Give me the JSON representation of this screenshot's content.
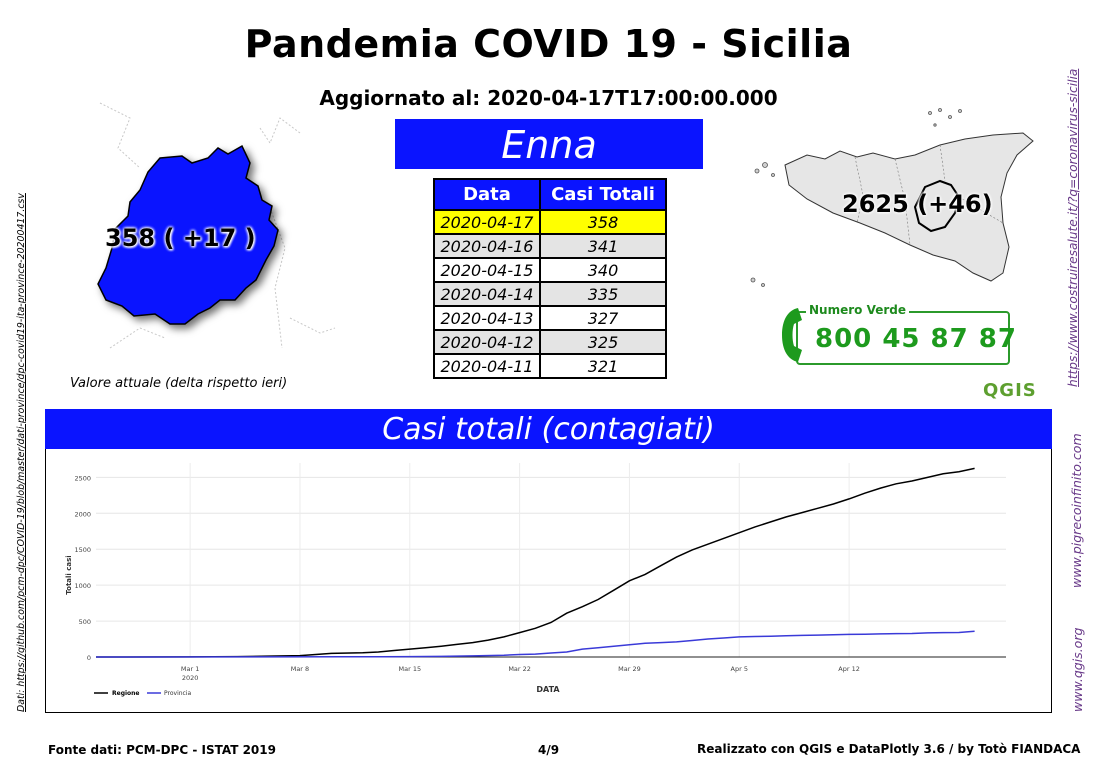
{
  "header": {
    "title": "Pandemia COVID 19 - Sicilia",
    "updated": "Aggiornato al: 2020-04-17T17:00:00.000",
    "province": "Enna"
  },
  "province_map": {
    "value_label": "358 ( +17 )",
    "note": "Valore attuale (delta rispetto ieri)",
    "fill_color": "#0a14ff"
  },
  "region_map": {
    "value_label": "2625 (+46)",
    "fill_color": "#e6e6e6"
  },
  "table": {
    "headers": [
      "Data",
      "Casi Totali"
    ],
    "rows": [
      {
        "date": "2020-04-17",
        "cases": "358"
      },
      {
        "date": "2020-04-16",
        "cases": "341"
      },
      {
        "date": "2020-04-15",
        "cases": "340"
      },
      {
        "date": "2020-04-14",
        "cases": "335"
      },
      {
        "date": "2020-04-13",
        "cases": "327"
      },
      {
        "date": "2020-04-12",
        "cases": "325"
      },
      {
        "date": "2020-04-11",
        "cases": "321"
      }
    ]
  },
  "numero_verde": {
    "label": "Numero Verde",
    "number": "800 45 87 87",
    "color": "#1d9a1d"
  },
  "qgis_logo": "QGIS",
  "chart_banner": "Casi totali (contagiati)",
  "chart_data": {
    "type": "line",
    "title": "Casi totali (contagiati)",
    "xlabel": "DATA",
    "ylabel": "Totali casi",
    "x_range_days": [
      0,
      58
    ],
    "ylim": [
      0,
      2700
    ],
    "yticks": [
      0,
      500,
      1000,
      1500,
      2000,
      2500
    ],
    "xticks": [
      {
        "day": 6,
        "label": "Mar 1",
        "sub": "2020"
      },
      {
        "day": 13,
        "label": "Mar 8"
      },
      {
        "day": 20,
        "label": "Mar 15"
      },
      {
        "day": 27,
        "label": "Mar 22"
      },
      {
        "day": 34,
        "label": "Mar 29"
      },
      {
        "day": 41,
        "label": "Apr 5"
      },
      {
        "day": 48,
        "label": "Apr 12"
      }
    ],
    "series": [
      {
        "name": "Regione",
        "color": "#000000",
        "points": [
          [
            0,
            0
          ],
          [
            6,
            2
          ],
          [
            9,
            5
          ],
          [
            11,
            12
          ],
          [
            13,
            20
          ],
          [
            14,
            35
          ],
          [
            15,
            50
          ],
          [
            17,
            60
          ],
          [
            18,
            70
          ],
          [
            19,
            90
          ],
          [
            20,
            110
          ],
          [
            21,
            130
          ],
          [
            22,
            150
          ],
          [
            23,
            175
          ],
          [
            24,
            200
          ],
          [
            25,
            235
          ],
          [
            26,
            280
          ],
          [
            27,
            340
          ],
          [
            28,
            400
          ],
          [
            29,
            480
          ],
          [
            30,
            610
          ],
          [
            31,
            700
          ],
          [
            32,
            800
          ],
          [
            33,
            930
          ],
          [
            34,
            1060
          ],
          [
            35,
            1150
          ],
          [
            36,
            1270
          ],
          [
            37,
            1390
          ],
          [
            38,
            1490
          ],
          [
            39,
            1570
          ],
          [
            40,
            1650
          ],
          [
            41,
            1730
          ],
          [
            42,
            1810
          ],
          [
            43,
            1880
          ],
          [
            44,
            1950
          ],
          [
            45,
            2010
          ],
          [
            46,
            2070
          ],
          [
            47,
            2130
          ],
          [
            48,
            2200
          ],
          [
            49,
            2280
          ],
          [
            50,
            2350
          ],
          [
            51,
            2410
          ],
          [
            52,
            2450
          ],
          [
            53,
            2500
          ],
          [
            54,
            2550
          ],
          [
            55,
            2579
          ],
          [
            56,
            2625
          ]
        ]
      },
      {
        "name": "Provincia",
        "color": "#3a3ad8",
        "points": [
          [
            0,
            0
          ],
          [
            10,
            1
          ],
          [
            16,
            3
          ],
          [
            20,
            6
          ],
          [
            22,
            8
          ],
          [
            24,
            15
          ],
          [
            26,
            25
          ],
          [
            27,
            35
          ],
          [
            28,
            40
          ],
          [
            29,
            55
          ],
          [
            30,
            70
          ],
          [
            31,
            110
          ],
          [
            32,
            130
          ],
          [
            33,
            150
          ],
          [
            34,
            170
          ],
          [
            35,
            190
          ],
          [
            36,
            200
          ],
          [
            37,
            210
          ],
          [
            38,
            230
          ],
          [
            39,
            250
          ],
          [
            40,
            265
          ],
          [
            41,
            280
          ],
          [
            42,
            285
          ],
          [
            43,
            290
          ],
          [
            44,
            295
          ],
          [
            45,
            300
          ],
          [
            46,
            305
          ],
          [
            47,
            310
          ],
          [
            48,
            315
          ],
          [
            49,
            318
          ],
          [
            50,
            321
          ],
          [
            51,
            325
          ],
          [
            52,
            327
          ],
          [
            53,
            335
          ],
          [
            54,
            340
          ],
          [
            55,
            341
          ],
          [
            56,
            358
          ]
        ]
      }
    ]
  },
  "footer": {
    "source": "Fonte dati: PCM-DPC - ISTAT 2019",
    "page": "4/9",
    "credit": "Realizzato con QGIS e DataPlotly 3.6 / by Totò FIANDACA"
  },
  "side_links": {
    "source_url": "Dati: https://github.com/pcm-dpc/COVID-19/blob/master/dati-province/dpc-covid19-ita-province-20200417.csv",
    "salute_url": "https://www.costruiresalute.it/?q=coronavirus-sicilia",
    "pigreco": "www.pigrecoinfinito.com",
    "qgis": "www.qgis.org"
  }
}
